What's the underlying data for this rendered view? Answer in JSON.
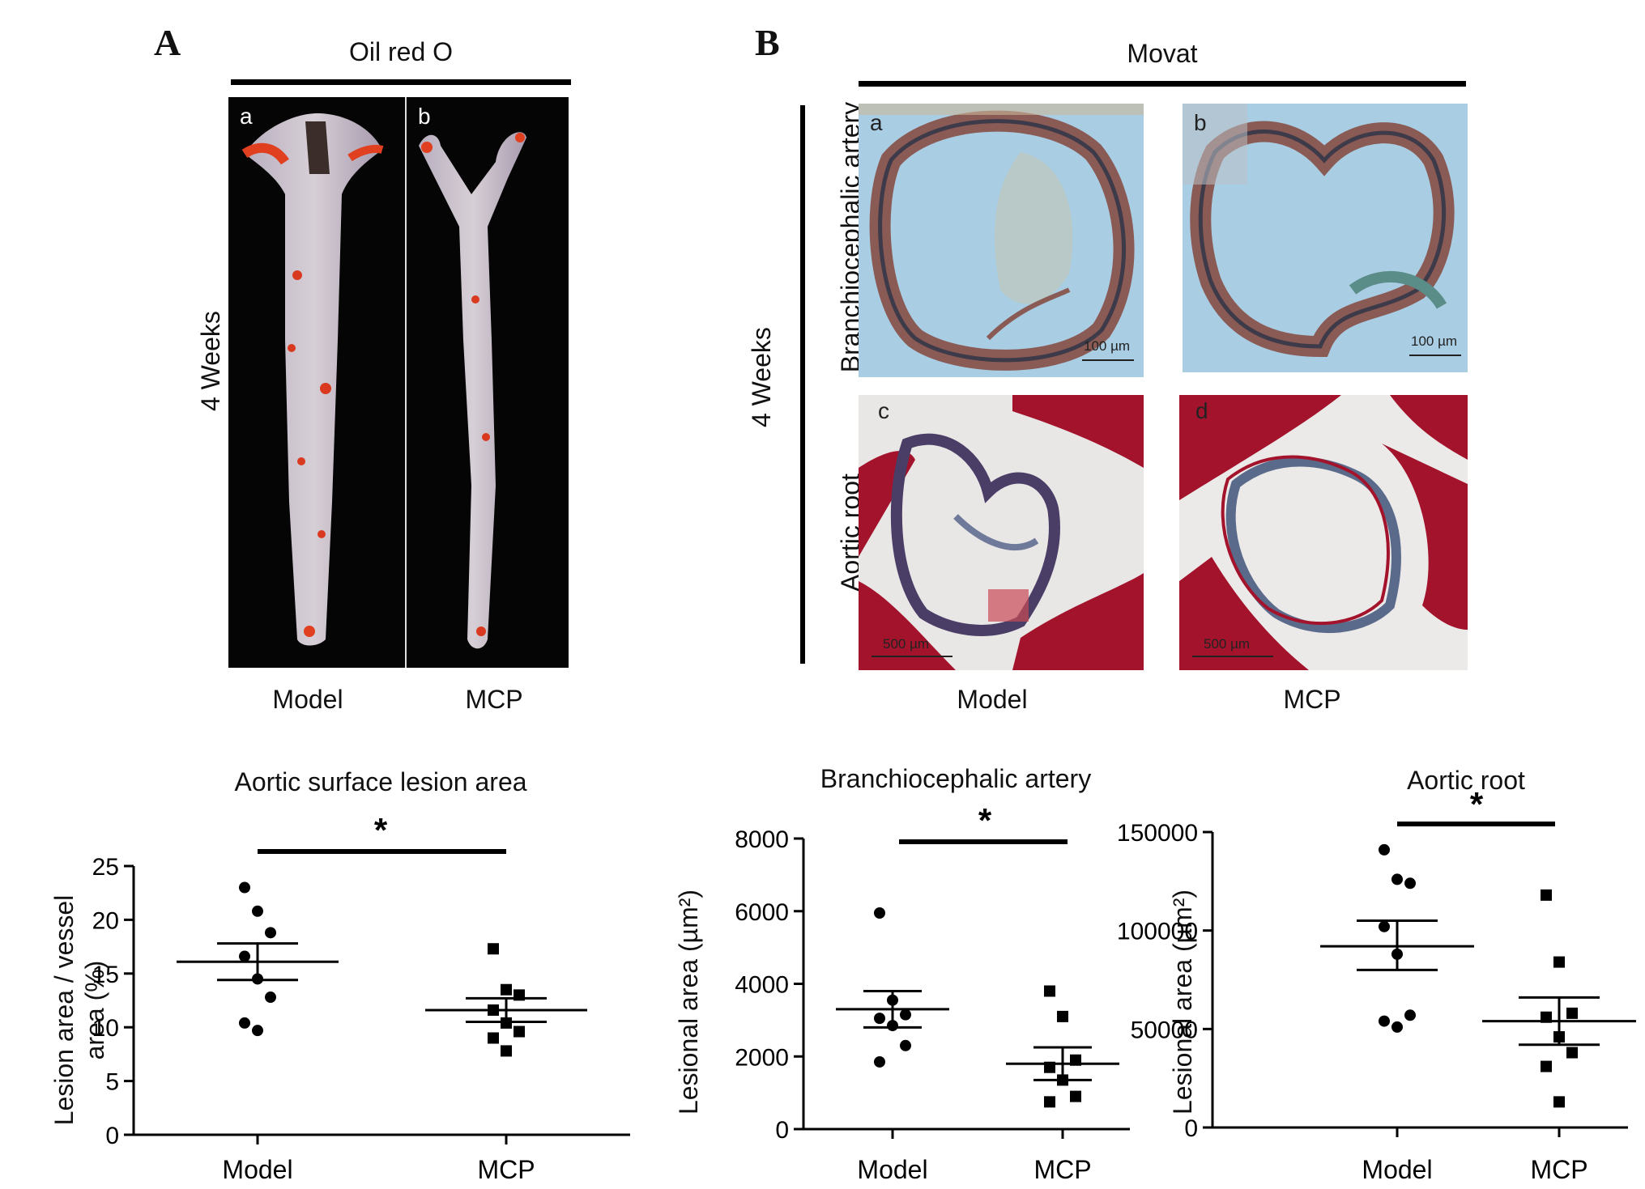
{
  "panel_a": {
    "letter": "A",
    "header": "Oil red O",
    "row_label": "4 Weeks",
    "sub_a": "a",
    "sub_b": "b",
    "groups": [
      "Model",
      "MCP"
    ]
  },
  "panel_b": {
    "letter": "B",
    "header": "Movat",
    "row_label": "4 Weeks",
    "row1_label": "Branchiocephalic artery",
    "row2_label": "Aortic root",
    "subs": [
      "a",
      "b",
      "c",
      "d"
    ],
    "scale_small": "100 µm",
    "scale_large": "500 µm",
    "groups": [
      "Model",
      "MCP"
    ]
  },
  "colors": {
    "oil_bg": "#050505",
    "movat_blue_bg": "#a9cde3",
    "movat_red": "#a3142c",
    "vessel_ring": "#8a5a55"
  },
  "chart_data": [
    {
      "type": "scatter",
      "title": "Aortic surface lesion area",
      "ylabel": "Lesion area / vessel area (%)",
      "ylabel_line1": "Lesion area / vessel",
      "ylabel_line2": "area (%)",
      "categories": [
        "Model",
        "MCP"
      ],
      "ylim": [
        0,
        25
      ],
      "yticks": [
        0,
        5,
        10,
        15,
        20,
        25
      ],
      "ytick_labels": [
        "0",
        "5",
        "10",
        "15",
        "20",
        "25"
      ],
      "series": [
        {
          "points": [
            23.0,
            20.8,
            18.8,
            16.6,
            14.5,
            12.8,
            10.4,
            9.7
          ],
          "mean": 16.1,
          "sem_upper": 17.8,
          "sem_lower": 14.4,
          "marker": "circle"
        },
        {
          "points": [
            17.3,
            13.5,
            13.0,
            11.6,
            10.4,
            9.6,
            9.0,
            7.8
          ],
          "mean": 11.6,
          "sem_upper": 12.7,
          "sem_lower": 10.5,
          "marker": "square"
        }
      ],
      "significance": "*"
    },
    {
      "type": "scatter",
      "title": "Branchiocephalic artery",
      "ylabel": "Lesional area (µm²)",
      "categories": [
        "Model",
        "MCP"
      ],
      "ylim": [
        0,
        8000
      ],
      "yticks": [
        0,
        2000,
        4000,
        6000,
        8000
      ],
      "ytick_labels": [
        "0",
        "2000",
        "4000",
        "6000",
        "8000"
      ],
      "series": [
        {
          "points": [
            5950,
            3550,
            3150,
            3050,
            2850,
            2300,
            1850
          ],
          "mean": 3300,
          "sem_upper": 3800,
          "sem_lower": 2800,
          "marker": "circle"
        },
        {
          "points": [
            3800,
            3100,
            1900,
            1700,
            1350,
            900,
            750
          ],
          "mean": 1800,
          "sem_upper": 2250,
          "sem_lower": 1350,
          "marker": "square"
        }
      ],
      "significance": "*"
    },
    {
      "type": "scatter",
      "title": "Aortic root",
      "ylabel": "Lesional area (µm²)",
      "categories": [
        "Model",
        "MCP"
      ],
      "ylim": [
        0,
        150000
      ],
      "yticks": [
        0,
        50000,
        100000,
        150000
      ],
      "ytick_labels": [
        "0",
        "50000",
        "100000",
        "150000"
      ],
      "series": [
        {
          "points": [
            141000,
            126000,
            124000,
            102000,
            88000,
            57000,
            54000,
            51000
          ],
          "mean": 92000,
          "sem_upper": 105000,
          "sem_lower": 80000,
          "marker": "circle"
        },
        {
          "points": [
            118000,
            84000,
            58000,
            56000,
            46000,
            38000,
            31000,
            13000
          ],
          "mean": 54000,
          "sem_upper": 66000,
          "sem_lower": 42000,
          "marker": "square"
        }
      ],
      "significance": "*"
    }
  ]
}
